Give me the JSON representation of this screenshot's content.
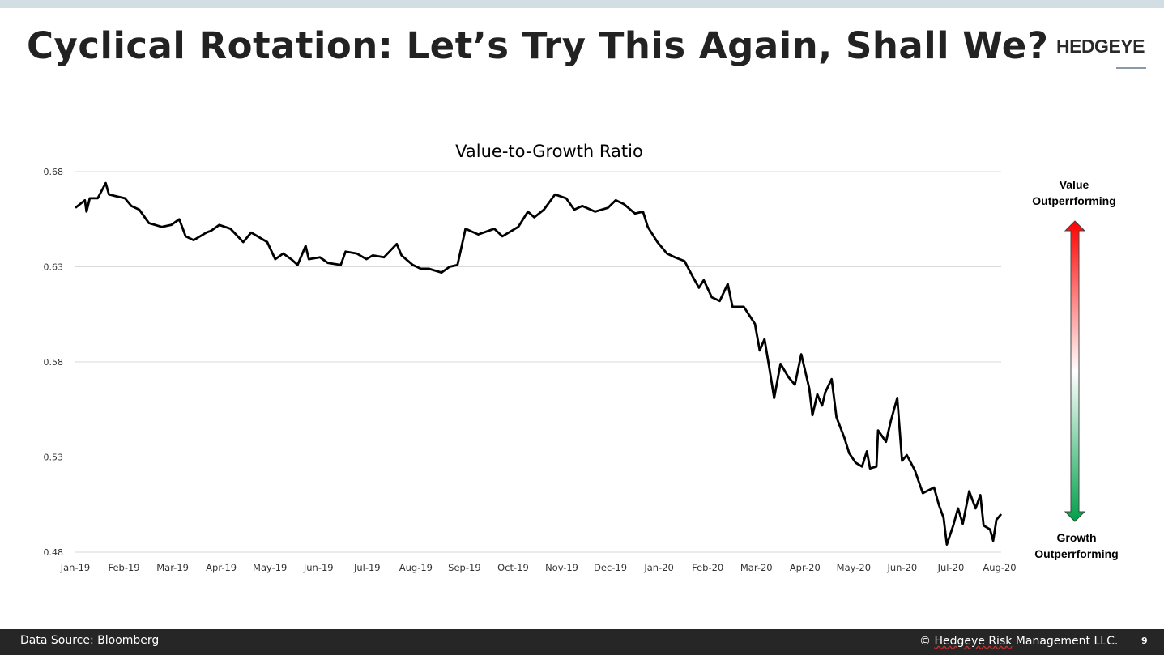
{
  "slide": {
    "title": "Cyclical Rotation: Let’s Try This Again, Shall We?",
    "logo": "HEDGEYE",
    "footer_source": "Data Source: Bloomberg",
    "footer_copyright_symbol": "©",
    "footer_copyright_underlined": "Hedgeye Risk",
    "footer_copyright_rest": " Management LLC.",
    "page_number": "9"
  },
  "arrow": {
    "top_label_1": "Value",
    "top_label_2": "Outperrforming",
    "bottom_label_1": "Growth",
    "bottom_label_2": "Outperrforming",
    "top_color": "#ff0000",
    "mid_color": "#ffffff",
    "bottom_color": "#00a04a"
  },
  "colors": {
    "line": "#000000",
    "grid": "#d9d9d9",
    "topbar": "#d3dee4",
    "footer": "#262626"
  },
  "chart_data": {
    "type": "line",
    "title": "Value-to-Growth Ratio",
    "xlabel": "",
    "ylabel": "",
    "ylim": [
      0.48,
      0.68
    ],
    "yticks": [
      "0.68",
      "0.63",
      "0.58",
      "0.53",
      "0.48"
    ],
    "xticks": [
      "Jan-19",
      "Feb-19",
      "Mar-19",
      "Apr-19",
      "May-19",
      "Jun-19",
      "Jul-19",
      "Aug-19",
      "Sep-19",
      "Oct-19",
      "Nov-19",
      "Dec-19",
      "Jan-20",
      "Feb-20",
      "Mar-20",
      "Apr-20",
      "May-20",
      "Jun-20",
      "Jul-20",
      "Aug-20"
    ],
    "xlim": [
      "2019-01-01",
      "2020-08-01"
    ],
    "grid": "horizontal",
    "legend": "none",
    "series": [
      {
        "points": [
          [
            "2019-01-01",
            0.661
          ],
          [
            "2019-01-07",
            0.665
          ],
          [
            "2019-01-08",
            0.659
          ],
          [
            "2019-01-10",
            0.666
          ],
          [
            "2019-01-15",
            0.666
          ],
          [
            "2019-01-20",
            0.674
          ],
          [
            "2019-01-22",
            0.668
          ],
          [
            "2019-01-27",
            0.667
          ],
          [
            "2019-02-01",
            0.666
          ],
          [
            "2019-02-05",
            0.662
          ],
          [
            "2019-02-10",
            0.66
          ],
          [
            "2019-02-16",
            0.653
          ],
          [
            "2019-02-24",
            0.651
          ],
          [
            "2019-03-02",
            0.652
          ],
          [
            "2019-03-07",
            0.655
          ],
          [
            "2019-03-11",
            0.646
          ],
          [
            "2019-03-16",
            0.644
          ],
          [
            "2019-03-24",
            0.648
          ],
          [
            "2019-03-27",
            0.649
          ],
          [
            "2019-04-01",
            0.652
          ],
          [
            "2019-04-08",
            0.65
          ],
          [
            "2019-04-16",
            0.643
          ],
          [
            "2019-04-21",
            0.648
          ],
          [
            "2019-05-01",
            0.643
          ],
          [
            "2019-05-06",
            0.634
          ],
          [
            "2019-05-11",
            0.637
          ],
          [
            "2019-05-16",
            0.634
          ],
          [
            "2019-05-20",
            0.631
          ],
          [
            "2019-05-25",
            0.641
          ],
          [
            "2019-05-27",
            0.634
          ],
          [
            "2019-06-03",
            0.635
          ],
          [
            "2019-06-08",
            0.632
          ],
          [
            "2019-06-16",
            0.631
          ],
          [
            "2019-06-19",
            0.638
          ],
          [
            "2019-06-26",
            0.637
          ],
          [
            "2019-07-02",
            0.634
          ],
          [
            "2019-07-06",
            0.636
          ],
          [
            "2019-07-13",
            0.635
          ],
          [
            "2019-07-21",
            0.642
          ],
          [
            "2019-07-24",
            0.636
          ],
          [
            "2019-07-31",
            0.631
          ],
          [
            "2019-08-05",
            0.629
          ],
          [
            "2019-08-10",
            0.629
          ],
          [
            "2019-08-18",
            0.627
          ],
          [
            "2019-08-23",
            0.63
          ],
          [
            "2019-08-28",
            0.631
          ],
          [
            "2019-09-02",
            0.65
          ],
          [
            "2019-09-10",
            0.647
          ],
          [
            "2019-09-20",
            0.65
          ],
          [
            "2019-09-25",
            0.646
          ],
          [
            "2019-10-05",
            0.651
          ],
          [
            "2019-10-11",
            0.659
          ],
          [
            "2019-10-15",
            0.656
          ],
          [
            "2019-10-21",
            0.66
          ],
          [
            "2019-10-28",
            0.668
          ],
          [
            "2019-11-04",
            0.666
          ],
          [
            "2019-11-09",
            0.66
          ],
          [
            "2019-11-14",
            0.662
          ],
          [
            "2019-11-22",
            0.659
          ],
          [
            "2019-11-30",
            0.661
          ],
          [
            "2019-12-05",
            0.665
          ],
          [
            "2019-12-10",
            0.663
          ],
          [
            "2019-12-17",
            0.658
          ],
          [
            "2019-12-22",
            0.659
          ],
          [
            "2019-12-25",
            0.651
          ],
          [
            "2019-12-31",
            0.643
          ],
          [
            "2020-01-06",
            0.637
          ],
          [
            "2020-01-11",
            0.635
          ],
          [
            "2020-01-17",
            0.633
          ],
          [
            "2020-01-22",
            0.625
          ],
          [
            "2020-01-26",
            0.619
          ],
          [
            "2020-01-29",
            0.623
          ],
          [
            "2020-02-03",
            0.614
          ],
          [
            "2020-02-08",
            0.612
          ],
          [
            "2020-02-13",
            0.621
          ],
          [
            "2020-02-16",
            0.609
          ],
          [
            "2020-02-23",
            0.609
          ],
          [
            "2020-03-01",
            0.6
          ],
          [
            "2020-03-04",
            0.586
          ],
          [
            "2020-03-07",
            0.592
          ],
          [
            "2020-03-10",
            0.577
          ],
          [
            "2020-03-13",
            0.561
          ],
          [
            "2020-03-17",
            0.579
          ],
          [
            "2020-03-22",
            0.572
          ],
          [
            "2020-03-26",
            0.568
          ],
          [
            "2020-03-30",
            0.584
          ],
          [
            "2020-04-04",
            0.566
          ],
          [
            "2020-04-06",
            0.552
          ],
          [
            "2020-04-09",
            0.563
          ],
          [
            "2020-04-12",
            0.557
          ],
          [
            "2020-04-14",
            0.564
          ],
          [
            "2020-04-18",
            0.571
          ],
          [
            "2020-04-21",
            0.551
          ],
          [
            "2020-04-26",
            0.54
          ],
          [
            "2020-04-29",
            0.532
          ],
          [
            "2020-05-03",
            0.527
          ],
          [
            "2020-05-07",
            0.525
          ],
          [
            "2020-05-10",
            0.533
          ],
          [
            "2020-05-12",
            0.524
          ],
          [
            "2020-05-16",
            0.525
          ],
          [
            "2020-05-17",
            0.544
          ],
          [
            "2020-05-22",
            0.538
          ],
          [
            "2020-05-25",
            0.549
          ],
          [
            "2020-05-29",
            0.561
          ],
          [
            "2020-06-01",
            0.528
          ],
          [
            "2020-06-04",
            0.531
          ],
          [
            "2020-06-09",
            0.523
          ],
          [
            "2020-06-14",
            0.511
          ],
          [
            "2020-06-21",
            0.514
          ],
          [
            "2020-06-24",
            0.505
          ],
          [
            "2020-06-27",
            0.498
          ],
          [
            "2020-06-29",
            0.484
          ],
          [
            "2020-07-03",
            0.494
          ],
          [
            "2020-07-06",
            0.503
          ],
          [
            "2020-07-09",
            0.495
          ],
          [
            "2020-07-13",
            0.512
          ],
          [
            "2020-07-17",
            0.503
          ],
          [
            "2020-07-20",
            0.51
          ],
          [
            "2020-07-22",
            0.494
          ],
          [
            "2020-07-26",
            0.492
          ],
          [
            "2020-07-28",
            0.486
          ],
          [
            "2020-07-30",
            0.497
          ],
          [
            "2020-08-02",
            0.5
          ]
        ]
      }
    ]
  }
}
